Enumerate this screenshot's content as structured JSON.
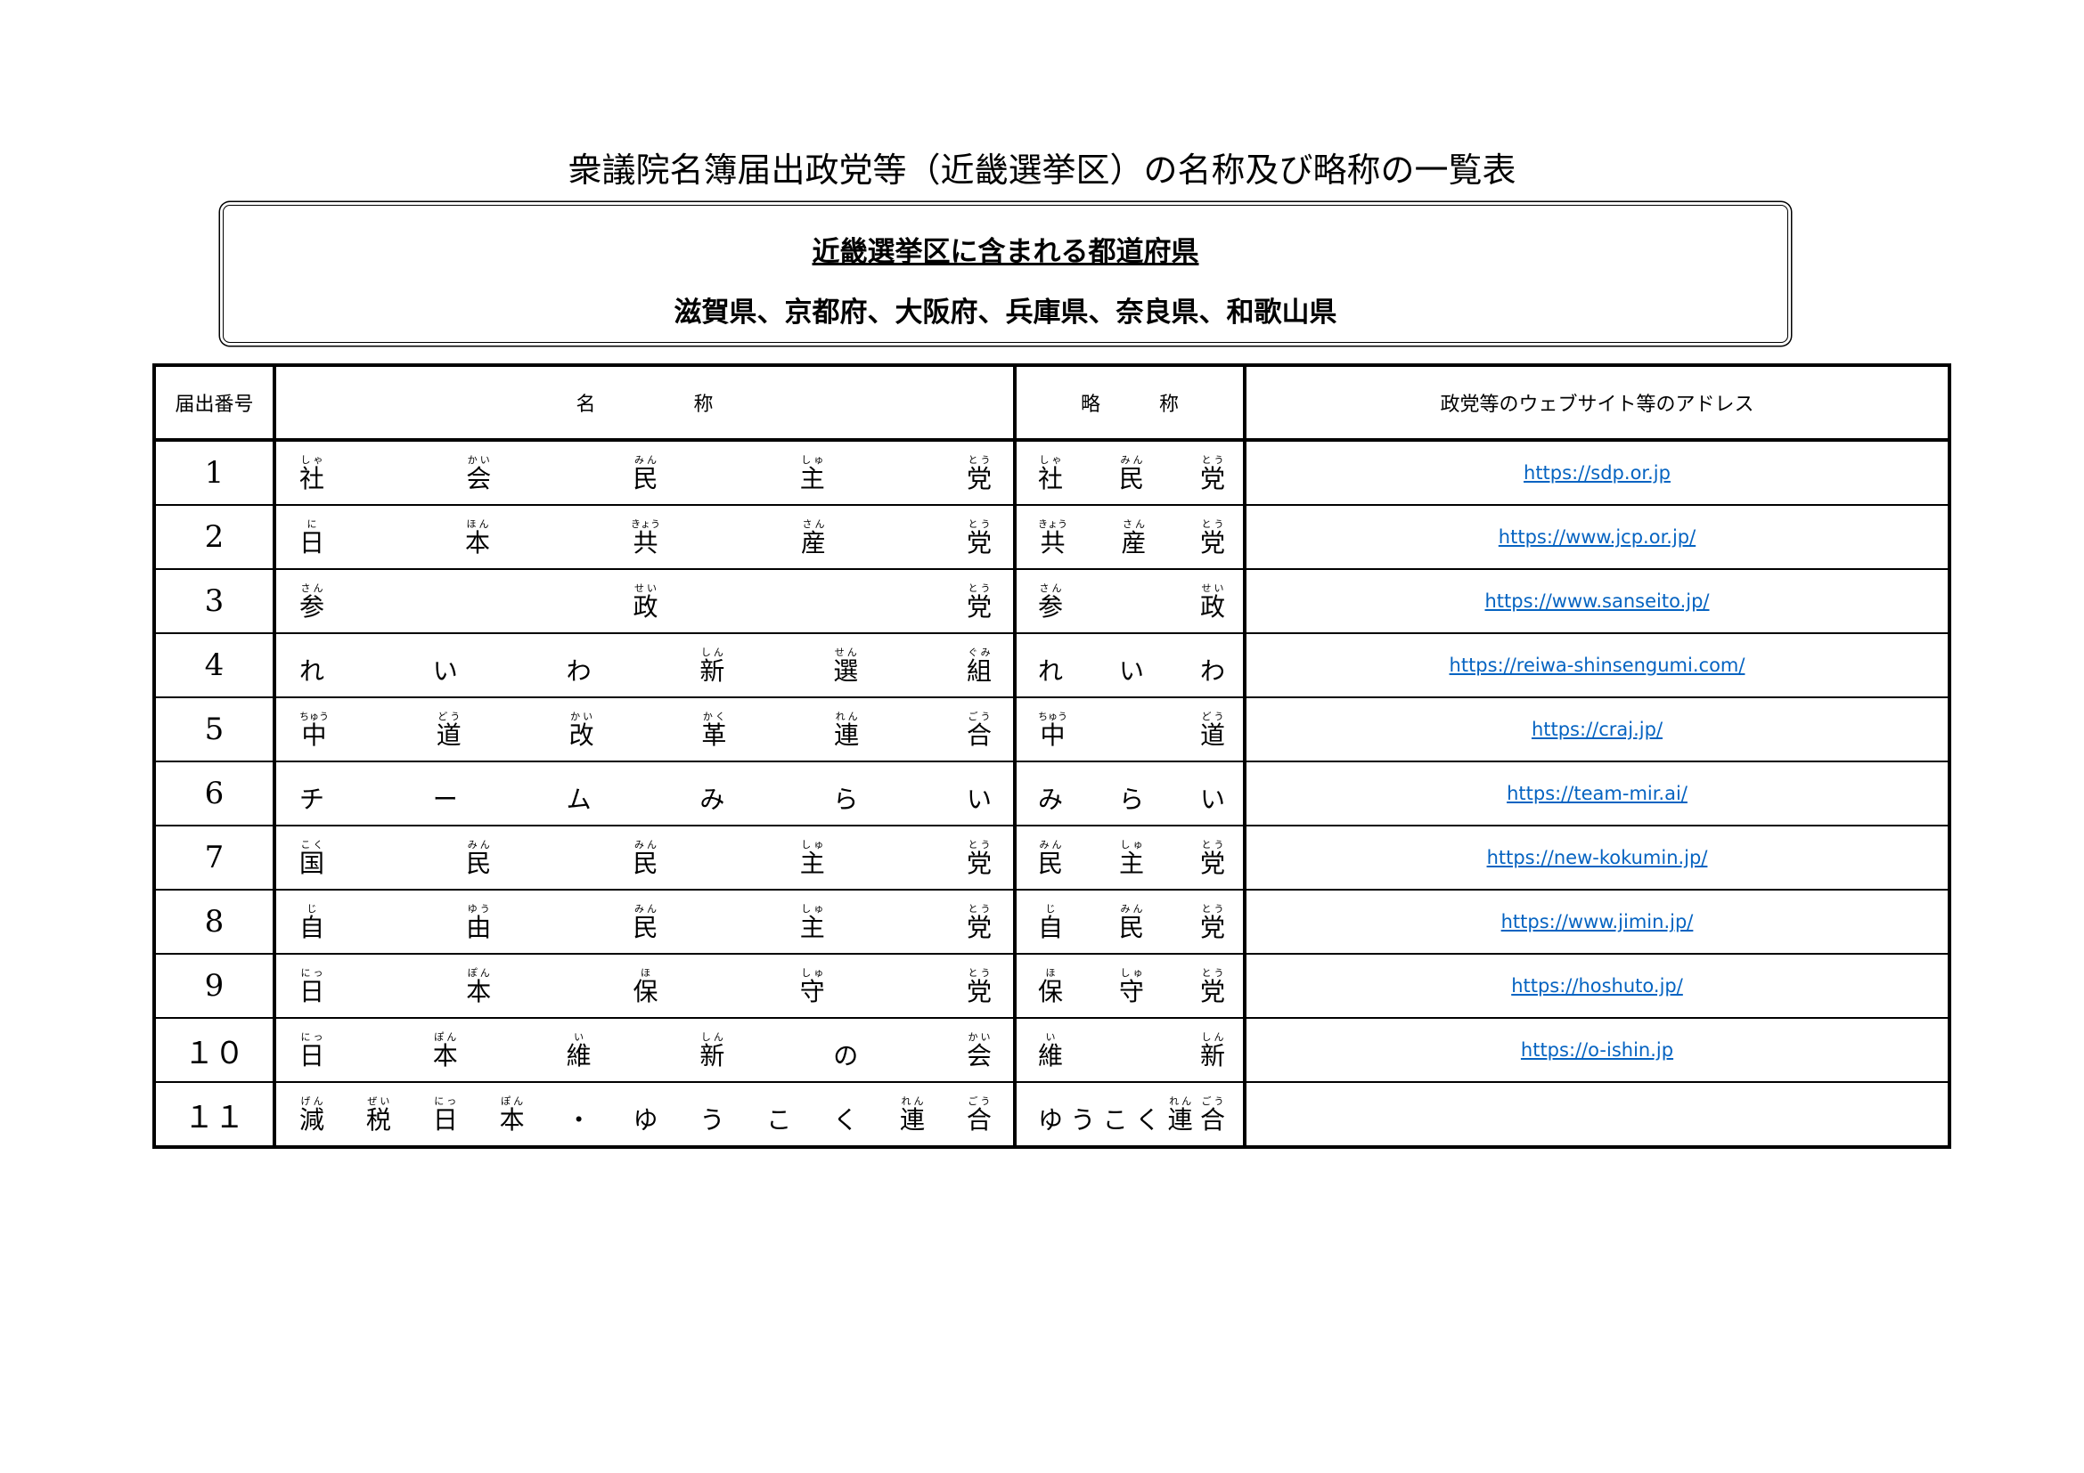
{
  "title": "衆議院名簿届出政党等（近畿選挙区）の名称及び略称の一覧表",
  "region_box": {
    "heading": "近畿選挙区に含まれる都道府県",
    "prefectures": "滋賀県、京都府、大阪府、兵庫県、奈良県、和歌山県"
  },
  "table": {
    "headers": {
      "number": "届出番号",
      "name": "名　　　　　称",
      "abbrev": "略　　　称",
      "website": "政党等のウェブサイト等のアドレス"
    },
    "link_color": "#0563c1",
    "rows": [
      {
        "number": "1",
        "name": [
          [
            "社",
            "しゃ"
          ],
          [
            "会",
            "かい"
          ],
          [
            "民",
            "みん"
          ],
          [
            "主",
            "しゅ"
          ],
          [
            "党",
            "とう"
          ]
        ],
        "abbrev": [
          [
            "社",
            "しゃ"
          ],
          [
            "民",
            "みん"
          ],
          [
            "党",
            "とう"
          ]
        ],
        "url": "https://sdp.or.jp"
      },
      {
        "number": "2",
        "name": [
          [
            "日",
            "に"
          ],
          [
            "本",
            "ほん"
          ],
          [
            "共",
            "きょう"
          ],
          [
            "産",
            "さん"
          ],
          [
            "党",
            "とう"
          ]
        ],
        "abbrev": [
          [
            "共",
            "きょう"
          ],
          [
            "産",
            "さん"
          ],
          [
            "党",
            "とう"
          ]
        ],
        "url": "https://www.jcp.or.jp/"
      },
      {
        "number": "3",
        "name": [
          [
            "参",
            "さん"
          ],
          [
            "政",
            "せい"
          ],
          [
            "党",
            "とう"
          ]
        ],
        "abbrev": [
          [
            "参",
            "さん"
          ],
          [
            "政",
            "せい"
          ]
        ],
        "url": "https://www.sanseito.jp/"
      },
      {
        "number": "4",
        "name": [
          [
            "れ",
            ""
          ],
          [
            "い",
            ""
          ],
          [
            "わ",
            ""
          ],
          [
            "新",
            "しん"
          ],
          [
            "選",
            "せん"
          ],
          [
            "組",
            "ぐみ"
          ]
        ],
        "abbrev": [
          [
            "れ",
            ""
          ],
          [
            "い",
            ""
          ],
          [
            "わ",
            ""
          ]
        ],
        "url": "https://reiwa-shinsengumi.com/"
      },
      {
        "number": "5",
        "name": [
          [
            "中",
            "ちゅう"
          ],
          [
            "道",
            "どう"
          ],
          [
            "改",
            "かい"
          ],
          [
            "革",
            "かく"
          ],
          [
            "連",
            "れん"
          ],
          [
            "合",
            "ごう"
          ]
        ],
        "abbrev": [
          [
            "中",
            "ちゅう"
          ],
          [
            "道",
            "どう"
          ]
        ],
        "url": "https://craj.jp/"
      },
      {
        "number": "6",
        "name": [
          [
            "チ",
            ""
          ],
          [
            "ー",
            ""
          ],
          [
            "ム",
            ""
          ],
          [
            "み",
            ""
          ],
          [
            "ら",
            ""
          ],
          [
            "い",
            ""
          ]
        ],
        "abbrev": [
          [
            "み",
            ""
          ],
          [
            "ら",
            ""
          ],
          [
            "い",
            ""
          ]
        ],
        "url": "https://team-mir.ai/"
      },
      {
        "number": "7",
        "name": [
          [
            "国",
            "こく"
          ],
          [
            "民",
            "みん"
          ],
          [
            "民",
            "みん"
          ],
          [
            "主",
            "しゅ"
          ],
          [
            "党",
            "とう"
          ]
        ],
        "abbrev": [
          [
            "民",
            "みん"
          ],
          [
            "主",
            "しゅ"
          ],
          [
            "党",
            "とう"
          ]
        ],
        "url": "https://new-kokumin.jp/"
      },
      {
        "number": "8",
        "name": [
          [
            "自",
            "じ"
          ],
          [
            "由",
            "ゆう"
          ],
          [
            "民",
            "みん"
          ],
          [
            "主",
            "しゅ"
          ],
          [
            "党",
            "とう"
          ]
        ],
        "abbrev": [
          [
            "自",
            "じ"
          ],
          [
            "民",
            "みん"
          ],
          [
            "党",
            "とう"
          ]
        ],
        "url": "https://www.jimin.jp/"
      },
      {
        "number": "9",
        "name": [
          [
            "日",
            "にっ"
          ],
          [
            "本",
            "ぽん"
          ],
          [
            "保",
            "ほ"
          ],
          [
            "守",
            "しゅ"
          ],
          [
            "党",
            "とう"
          ]
        ],
        "abbrev": [
          [
            "保",
            "ほ"
          ],
          [
            "守",
            "しゅ"
          ],
          [
            "党",
            "とう"
          ]
        ],
        "url": "https://hoshuto.jp/"
      },
      {
        "number": "１０",
        "name": [
          [
            "日",
            "にっ"
          ],
          [
            "本",
            "ぽん"
          ],
          [
            "維",
            "い"
          ],
          [
            "新",
            "しん"
          ],
          [
            "の",
            ""
          ],
          [
            "会",
            "かい"
          ]
        ],
        "abbrev": [
          [
            "維",
            "い"
          ],
          [
            "新",
            "しん"
          ]
        ],
        "url": "https://o-ishin.jp"
      },
      {
        "number": "１１",
        "name": [
          [
            "減",
            "げん"
          ],
          [
            "税",
            "ぜい"
          ],
          [
            "日",
            "にっ"
          ],
          [
            "本",
            "ぽん"
          ],
          [
            "・",
            ""
          ],
          [
            "ゆ",
            ""
          ],
          [
            "う",
            ""
          ],
          [
            "こ",
            ""
          ],
          [
            "く",
            ""
          ],
          [
            "連",
            "れん"
          ],
          [
            "合",
            "ごう"
          ]
        ],
        "abbrev": [
          [
            "ゆ",
            ""
          ],
          [
            "う",
            ""
          ],
          [
            "こ",
            ""
          ],
          [
            "く",
            ""
          ],
          [
            "連",
            "れん"
          ],
          [
            "合",
            "ごう"
          ]
        ],
        "url": ""
      }
    ]
  }
}
